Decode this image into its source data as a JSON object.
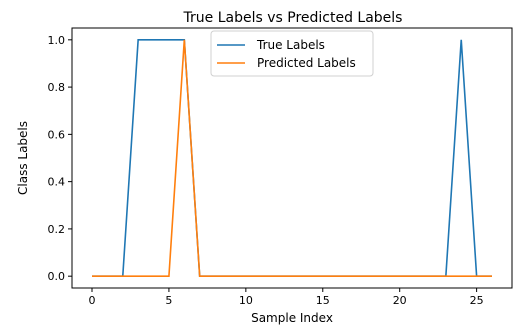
{
  "chart_data": {
    "type": "line",
    "title": "True Labels vs Predicted Labels",
    "xlabel": "Sample Index",
    "ylabel": "Class Labels",
    "xlim": [
      -1.3,
      27.3
    ],
    "ylim": [
      -0.05,
      1.05
    ],
    "xticks": [
      0,
      5,
      10,
      15,
      20,
      25
    ],
    "yticks": [
      0.0,
      0.2,
      0.4,
      0.6,
      0.8,
      1.0
    ],
    "xtick_labels": [
      "0",
      "5",
      "10",
      "15",
      "20",
      "25"
    ],
    "ytick_labels": [
      "0.0",
      "0.2",
      "0.4",
      "0.6",
      "0.8",
      "1.0"
    ],
    "grid": false,
    "legend_position": "top-center",
    "x": [
      0,
      1,
      2,
      3,
      4,
      5,
      6,
      7,
      8,
      9,
      10,
      11,
      12,
      13,
      14,
      15,
      16,
      17,
      18,
      19,
      20,
      21,
      22,
      23,
      24,
      25,
      26
    ],
    "series": [
      {
        "name": "True Labels",
        "color": "#1f77b4",
        "values": [
          0,
          0,
          0,
          1,
          1,
          1,
          1,
          0,
          0,
          0,
          0,
          0,
          0,
          0,
          0,
          0,
          0,
          0,
          0,
          0,
          0,
          0,
          0,
          0,
          1,
          0,
          0
        ]
      },
      {
        "name": "Predicted Labels",
        "color": "#ff7f0e",
        "values": [
          0,
          0,
          0,
          0,
          0,
          0,
          1,
          0,
          0,
          0,
          0,
          0,
          0,
          0,
          0,
          0,
          0,
          0,
          0,
          0,
          0,
          0,
          0,
          0,
          0,
          0,
          0
        ]
      }
    ]
  }
}
